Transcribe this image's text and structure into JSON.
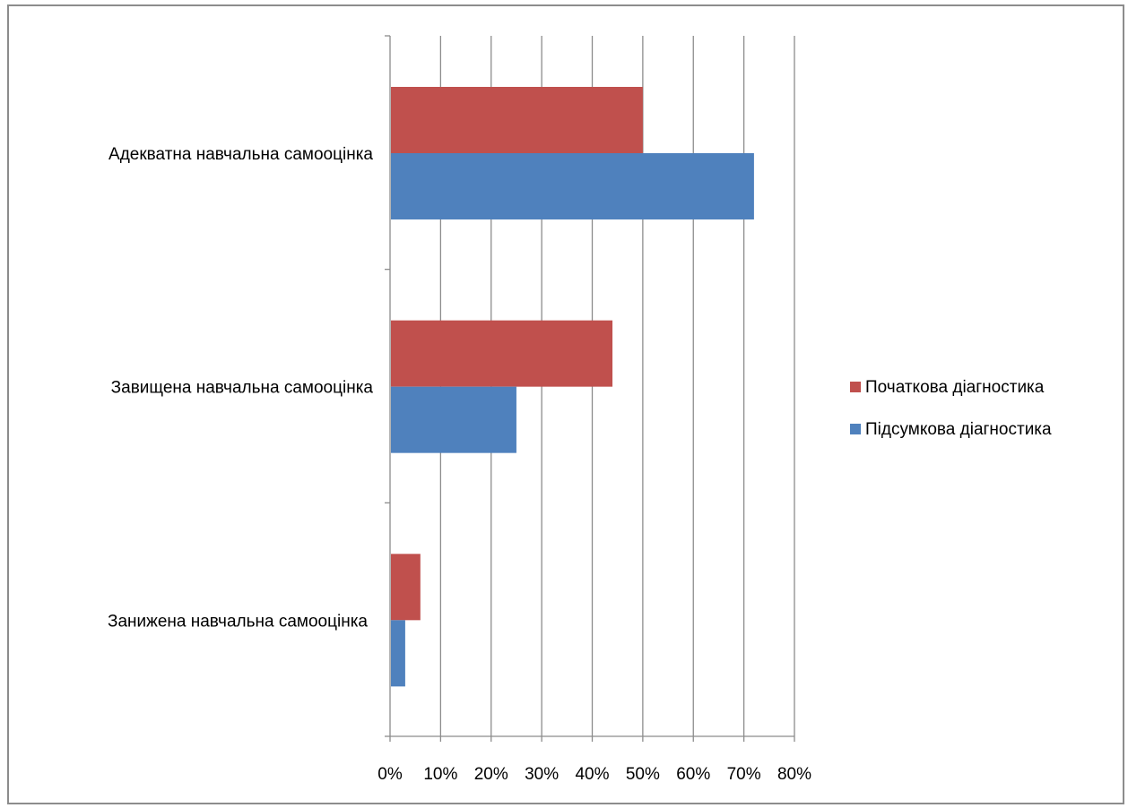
{
  "chart_data": {
    "type": "bar",
    "orientation": "horizontal",
    "title": "",
    "xlabel": "",
    "ylabel": "",
    "categories": [
      "Адекватна навчальна самооцінка",
      "Завищена навчальна самооцінка",
      "Занижена навчальна самооцінка"
    ],
    "series": [
      {
        "name": "Початкова діагностика",
        "color": "#C0504D",
        "values": [
          0.5,
          0.44,
          0.06
        ]
      },
      {
        "name": "Підсумкова діагностика",
        "color": "#4F81BD",
        "values": [
          0.72,
          0.25,
          0.03
        ]
      }
    ],
    "xlim": [
      0,
      0.8
    ],
    "x_ticks": [
      "0%",
      "10%",
      "20%",
      "30%",
      "40%",
      "50%",
      "60%",
      "70%",
      "80%"
    ],
    "grid": true,
    "legend_position": "right"
  }
}
